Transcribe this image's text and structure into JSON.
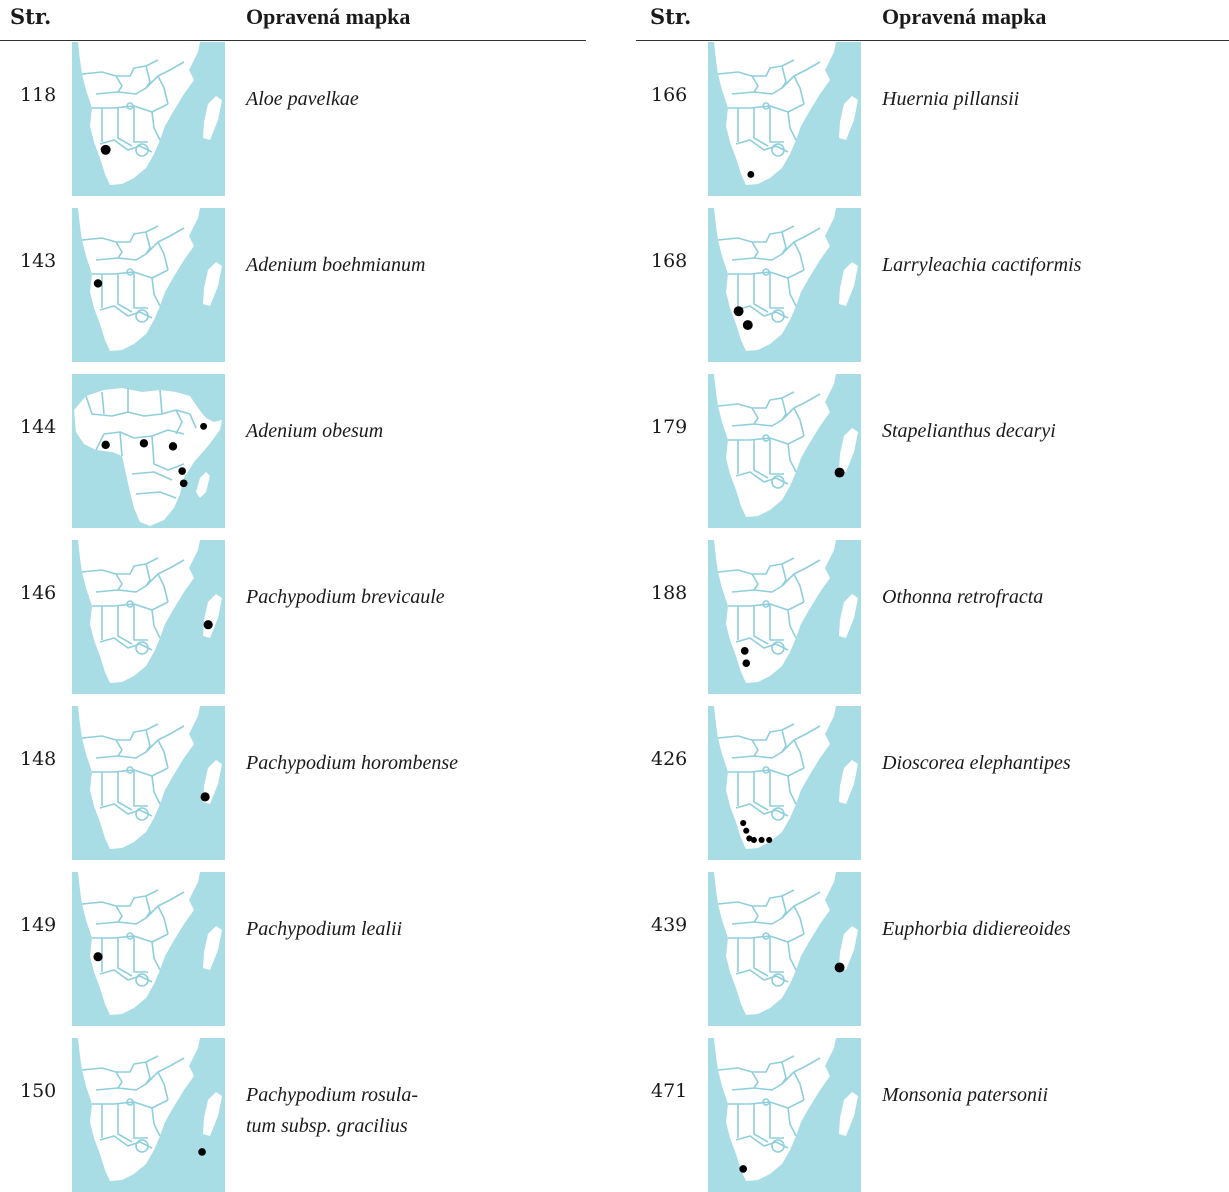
{
  "colors": {
    "sea": "#a9dde6",
    "land": "#ffffff",
    "border": "#8fcfdc",
    "dot": "#000000"
  },
  "headers": {
    "page_col": "Str.",
    "map_col": "Opravená mapka"
  },
  "left_entries": [
    {
      "page": "118",
      "species": [
        "Aloe pavelkae"
      ],
      "map": "southern-africa",
      "dots": [
        [
          0.22,
          0.7,
          0.065
        ]
      ]
    },
    {
      "page": "143",
      "species": [
        "Adenium boehmianum"
      ],
      "map": "southern-africa",
      "dots": [
        [
          0.17,
          0.49,
          0.055
        ]
      ]
    },
    {
      "page": "144",
      "species": [
        "Adenium obesum"
      ],
      "map": "africa",
      "dots": [
        [
          0.22,
          0.46,
          0.055
        ],
        [
          0.47,
          0.45,
          0.055
        ],
        [
          0.66,
          0.47,
          0.055
        ],
        [
          0.86,
          0.34,
          0.045
        ],
        [
          0.72,
          0.63,
          0.05
        ],
        [
          0.73,
          0.71,
          0.05
        ]
      ]
    },
    {
      "page": "146",
      "species": [
        "Pachypodium brevicaule"
      ],
      "map": "southern-africa",
      "dots": [
        [
          0.89,
          0.55,
          0.06
        ]
      ]
    },
    {
      "page": "148",
      "species": [
        "Pachypodium horombense"
      ],
      "map": "southern-africa",
      "dots": [
        [
          0.87,
          0.59,
          0.06
        ]
      ]
    },
    {
      "page": "149",
      "species": [
        "Pachypodium lealii"
      ],
      "map": "southern-africa",
      "dots": [
        [
          0.17,
          0.55,
          0.06
        ]
      ]
    },
    {
      "page": "150",
      "species": [
        "Pachypodium rosula-",
        "tum subsp. gracilius"
      ],
      "map": "southern-africa",
      "dots": [
        [
          0.85,
          0.74,
          0.05
        ]
      ]
    }
  ],
  "right_entries": [
    {
      "page": "166",
      "species": [
        "Huernia pillansii"
      ],
      "map": "southern-africa",
      "dots": [
        [
          0.28,
          0.86,
          0.045
        ]
      ]
    },
    {
      "page": "168",
      "species": [
        "Larryleachia cactiformis"
      ],
      "map": "southern-africa",
      "dots": [
        [
          0.2,
          0.67,
          0.065
        ],
        [
          0.26,
          0.76,
          0.065
        ]
      ]
    },
    {
      "page": "179",
      "species": [
        "Stapelianthus decaryi"
      ],
      "map": "southern-africa",
      "dots": [
        [
          0.86,
          0.64,
          0.065
        ]
      ]
    },
    {
      "page": "188",
      "species": [
        "Othonna retrofracta"
      ],
      "map": "southern-africa",
      "dots": [
        [
          0.24,
          0.72,
          0.05
        ],
        [
          0.25,
          0.8,
          0.05
        ]
      ]
    },
    {
      "page": "426",
      "species": [
        "Dioscorea elephantipes"
      ],
      "map": "southern-africa",
      "dots": [
        [
          0.23,
          0.76,
          0.04
        ],
        [
          0.25,
          0.81,
          0.04
        ],
        [
          0.27,
          0.86,
          0.04
        ],
        [
          0.3,
          0.87,
          0.04
        ],
        [
          0.35,
          0.87,
          0.04
        ],
        [
          0.4,
          0.87,
          0.04
        ]
      ]
    },
    {
      "page": "439",
      "species": [
        "Euphorbia didiereoides"
      ],
      "map": "southern-africa",
      "dots": [
        [
          0.86,
          0.62,
          0.065
        ]
      ]
    },
    {
      "page": "471",
      "species": [
        "Monsonia patersonii"
      ],
      "map": "southern-africa",
      "dots": [
        [
          0.23,
          0.85,
          0.05
        ]
      ]
    }
  ]
}
